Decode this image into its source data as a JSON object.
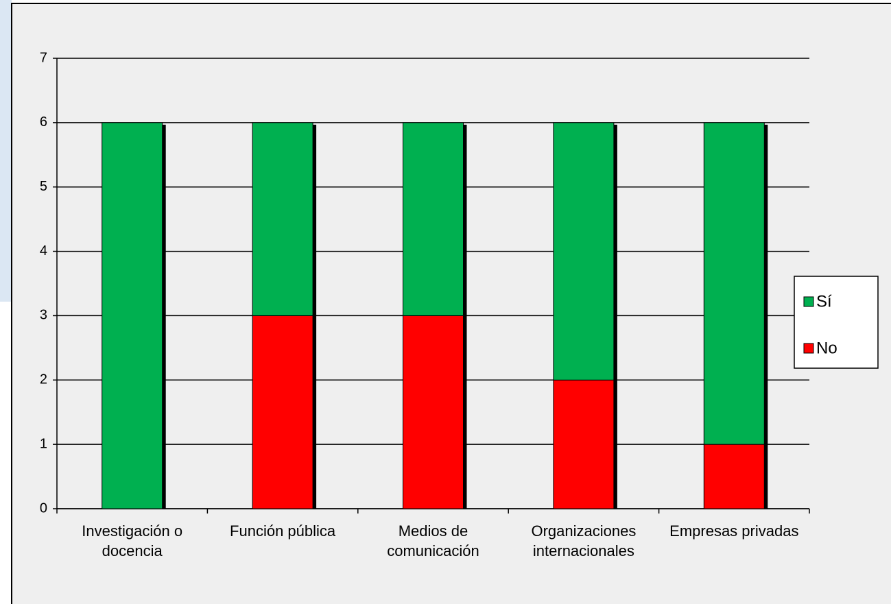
{
  "chart_data": {
    "type": "stacked-bar",
    "categories": [
      "Investigación o docencia",
      "Función pública",
      "Medios de comunicación",
      "Organizaciones internacionales",
      "Empresas privadas"
    ],
    "series": [
      {
        "name": "Sí",
        "color": "#00b050",
        "values": [
          6,
          3,
          3,
          4,
          5
        ]
      },
      {
        "name": "No",
        "color": "#ff0000",
        "values": [
          0,
          3,
          3,
          2,
          1
        ]
      }
    ],
    "ylim": [
      0,
      7
    ],
    "yticks": [
      0,
      1,
      2,
      3,
      4,
      5,
      6,
      7
    ],
    "grid": true,
    "legend": "right"
  }
}
